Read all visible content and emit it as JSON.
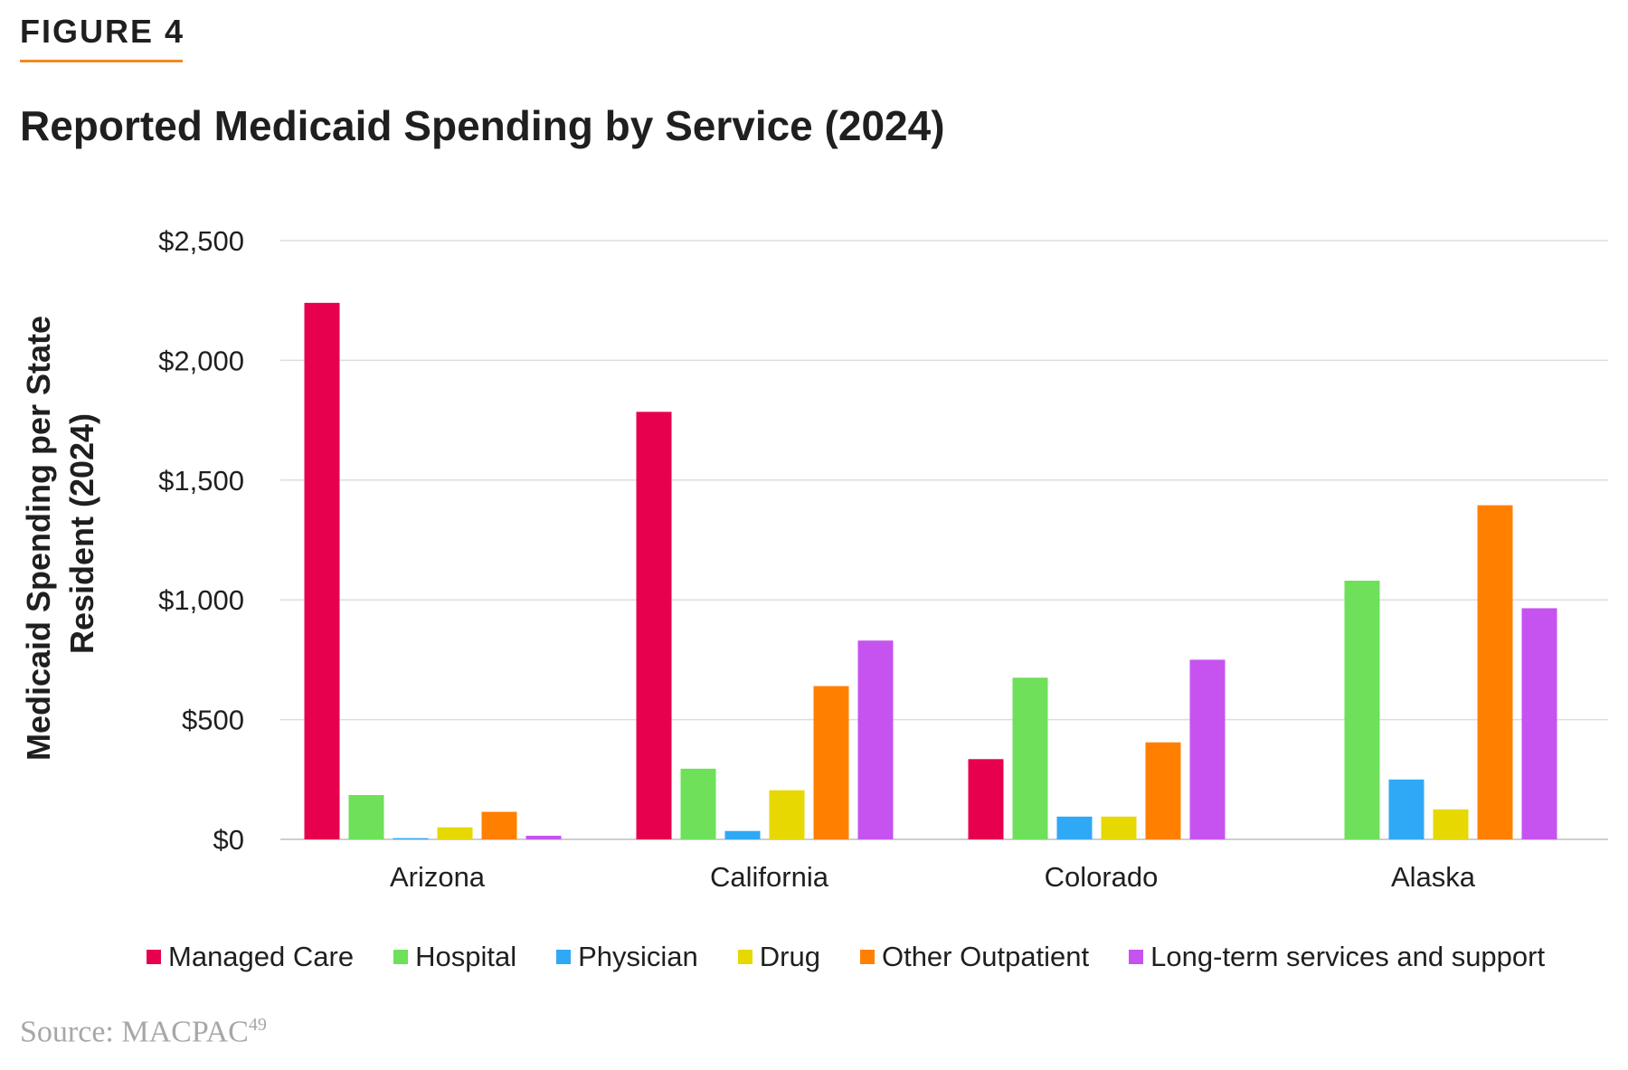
{
  "figure_label": "FIGURE 4",
  "source": {
    "text": "Source: MACPAC",
    "footnote": "49"
  },
  "chart_data": {
    "type": "bar",
    "title": "Reported Medicaid Spending by Service (2024)",
    "ylabel_lines": [
      "Medicaid Spending per State",
      "Resident (2024)"
    ],
    "ylabel": "Medicaid Spending per State Resident (2024)",
    "xlabel": "",
    "ylim": [
      0,
      2500
    ],
    "yticks": [
      0,
      500,
      1000,
      1500,
      2000,
      2500
    ],
    "ytick_labels": [
      "$0",
      "$500",
      "$1,000",
      "$1,500",
      "$2,000",
      "$2,500"
    ],
    "grid": true,
    "legend_position": "bottom",
    "categories": [
      "Arizona",
      "California",
      "Colorado",
      "Alaska"
    ],
    "series": [
      {
        "name": "Managed Care",
        "color": "#e6004d",
        "values": [
          2240,
          1785,
          335,
          0
        ]
      },
      {
        "name": "Hospital",
        "color": "#6ee05a",
        "values": [
          185,
          295,
          675,
          1080
        ]
      },
      {
        "name": "Physician",
        "color": "#2fa9f5",
        "values": [
          5,
          35,
          95,
          250
        ]
      },
      {
        "name": "Drug",
        "color": "#e6d800",
        "values": [
          50,
          205,
          95,
          125
        ]
      },
      {
        "name": "Other Outpatient",
        "color": "#ff8000",
        "values": [
          115,
          640,
          405,
          1395
        ]
      },
      {
        "name": "Long-term services and support",
        "color": "#c653f0",
        "values": [
          15,
          830,
          750,
          965
        ]
      }
    ]
  }
}
